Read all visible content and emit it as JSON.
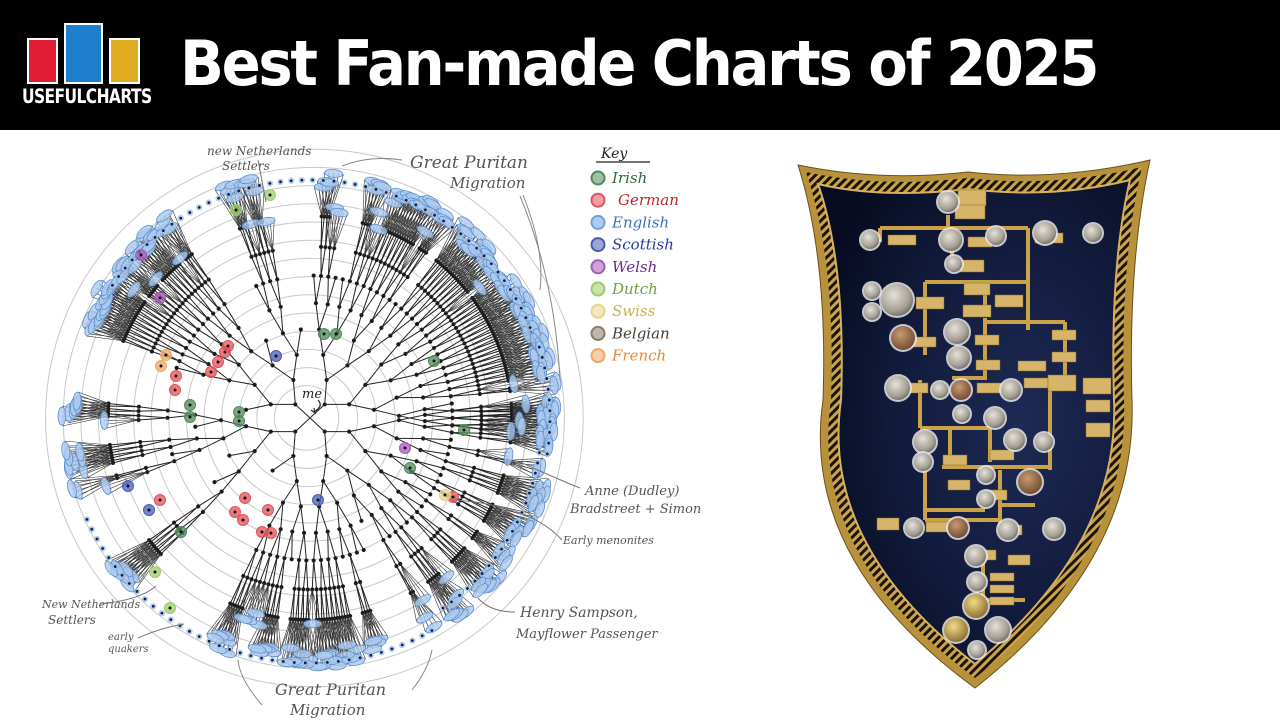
{
  "header": {
    "brand": "USEFULCHARTS",
    "brand_colors": {
      "red": "#e11d35",
      "blue": "#1f7fcf",
      "yellow": "#e0ad22"
    },
    "title": "Best Fan-made Charts of 2025",
    "background": "#000000"
  },
  "fan_chart": {
    "center_label": "me",
    "ring_count": 14,
    "annotations": [
      {
        "id": "nn-top",
        "text_lines": [
          "new Netherlands",
          "Settlers"
        ]
      },
      {
        "id": "gpm-top",
        "text_lines": [
          "Great Puritan",
          "Migration"
        ]
      },
      {
        "id": "anne",
        "text_lines": [
          "Anne (Dudley)",
          "Bradstreet + Simon"
        ]
      },
      {
        "id": "menonites",
        "text_lines": [
          "Early menonites"
        ]
      },
      {
        "id": "henry",
        "text_lines": [
          "Henry Sampson,",
          "Mayflower Passenger"
        ]
      },
      {
        "id": "gpm-bottom",
        "text_lines": [
          "Great Puritan",
          "Migration"
        ]
      },
      {
        "id": "nn-bottom",
        "text_lines": [
          "New Netherlands",
          "Settlers"
        ]
      },
      {
        "id": "quakers",
        "text_lines": [
          "early",
          "quakers"
        ]
      }
    ],
    "key": {
      "title": "Key",
      "items": [
        {
          "label": "Irish",
          "color": "#4f8a5a",
          "text_color": "#2e6b45"
        },
        {
          "label": "German",
          "color": "#e0525a",
          "text_color": "#c0262e"
        },
        {
          "label": "English",
          "color": "#6fa0e0",
          "text_color": "#3b6fbf"
        },
        {
          "label": "Scottish",
          "color": "#4a5bb5",
          "text_color": "#2a3a9a"
        },
        {
          "label": "Welsh",
          "color": "#a55ab8",
          "text_color": "#6a2a8a"
        },
        {
          "label": "Dutch",
          "color": "#9ccc6a",
          "text_color": "#6aa33a"
        },
        {
          "label": "Swiss",
          "color": "#e6d58a",
          "text_color": "#c9b24a"
        },
        {
          "label": "Belgian",
          "color": "#8a7a6a",
          "text_color": "#4a3f36"
        },
        {
          "label": "French",
          "color": "#f0a860",
          "text_color": "#e08a3a"
        }
      ]
    }
  },
  "shield_chart": {
    "description": "Coin family tree mounted on a navy velvet shield with gold rope border",
    "background": "#0d1330",
    "trim": "#c9a24a"
  }
}
